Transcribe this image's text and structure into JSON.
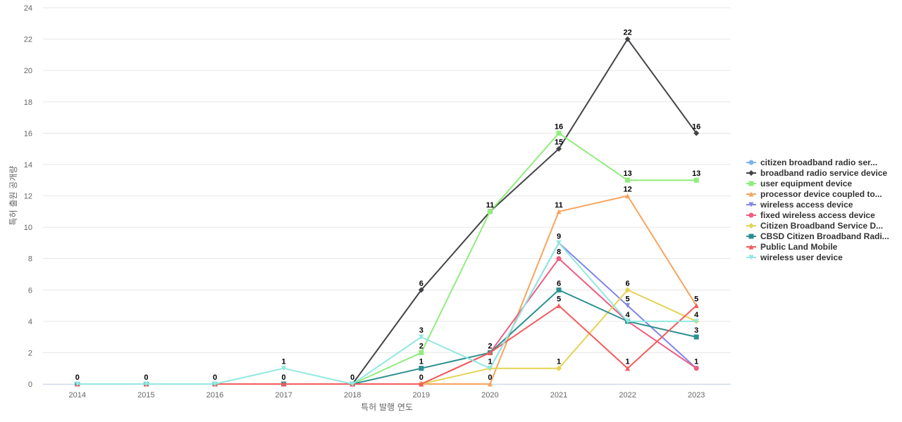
{
  "chart_data": {
    "type": "line",
    "xlabel": "특허 발행 연도",
    "ylabel": "특허 출원 공개량",
    "ylim": [
      0,
      24
    ],
    "y_ticks": [
      0,
      2,
      4,
      6,
      8,
      10,
      12,
      14,
      16,
      18,
      20,
      22,
      24
    ],
    "x": [
      "2014",
      "2015",
      "2016",
      "2017",
      "2018",
      "2019",
      "2020",
      "2021",
      "2022",
      "2023"
    ],
    "grid": true,
    "legend_position": "right",
    "series": [
      {
        "name": "citizen broadband radio ser...",
        "color": "#7cb5ec",
        "marker": "circle",
        "values": [
          0,
          0,
          0,
          0,
          0,
          null,
          null,
          null,
          null,
          null
        ]
      },
      {
        "name": "broadband radio service device",
        "color": "#434348",
        "marker": "diamond",
        "values": [
          null,
          null,
          null,
          null,
          0,
          6,
          11,
          15,
          22,
          16
        ]
      },
      {
        "name": "user equipment device",
        "color": "#90ed7d",
        "marker": "square",
        "values": [
          null,
          null,
          null,
          null,
          0,
          2,
          11,
          16,
          13,
          13
        ]
      },
      {
        "name": "processor device coupled to...",
        "color": "#f7a35c",
        "marker": "triangle",
        "values": [
          null,
          null,
          null,
          null,
          null,
          0,
          0,
          11,
          12,
          5
        ]
      },
      {
        "name": "wireless access device",
        "color": "#8085e9",
        "marker": "triangle-down",
        "values": [
          null,
          null,
          null,
          null,
          null,
          null,
          1,
          9,
          5,
          1
        ]
      },
      {
        "name": "fixed wireless access device",
        "color": "#f15c80",
        "marker": "circle",
        "values": [
          null,
          null,
          null,
          null,
          null,
          0,
          2,
          8,
          4,
          1
        ]
      },
      {
        "name": "Citizen Broadband Service D...",
        "color": "#e4d354",
        "marker": "diamond",
        "values": [
          null,
          null,
          null,
          null,
          null,
          0,
          1,
          1,
          6,
          4
        ]
      },
      {
        "name": "CBSD Citizen Broadband Radi...",
        "color": "#2b908f",
        "marker": "square",
        "values": [
          0,
          0,
          0,
          0,
          0,
          1,
          2,
          6,
          4,
          3
        ]
      },
      {
        "name": "Public Land Mobile",
        "color": "#f45b5b",
        "marker": "triangle",
        "values": [
          0,
          0,
          0,
          0,
          0,
          0,
          2,
          5,
          1,
          5
        ]
      },
      {
        "name": "wireless user device",
        "color": "#91e8e1",
        "marker": "triangle-down",
        "values": [
          0,
          0,
          0,
          1,
          0,
          3,
          1,
          9,
          4,
          4
        ]
      }
    ],
    "data_labels": [
      {
        "x": "2014",
        "value": 0,
        "text": "0"
      },
      {
        "x": "2015",
        "value": 0,
        "text": "0"
      },
      {
        "x": "2016",
        "value": 0,
        "text": "0"
      },
      {
        "x": "2017",
        "value": 1,
        "text": "1"
      },
      {
        "x": "2017",
        "value": 0,
        "text": "0"
      },
      {
        "x": "2018",
        "value": 0,
        "text": "0"
      },
      {
        "x": "2019",
        "value": 6,
        "text": "6"
      },
      {
        "x": "2019",
        "value": 3,
        "text": "3"
      },
      {
        "x": "2019",
        "value": 2,
        "text": "2"
      },
      {
        "x": "2019",
        "value": 1,
        "text": "1"
      },
      {
        "x": "2019",
        "value": 0,
        "text": "0"
      },
      {
        "x": "2020",
        "value": 11,
        "text": "11"
      },
      {
        "x": "2020",
        "value": 2,
        "text": "2"
      },
      {
        "x": "2020",
        "value": 1,
        "text": "1"
      },
      {
        "x": "2020",
        "value": 0,
        "text": "0"
      },
      {
        "x": "2021",
        "value": 16,
        "text": "16"
      },
      {
        "x": "2021",
        "value": 15,
        "text": "15"
      },
      {
        "x": "2021",
        "value": 11,
        "text": "11"
      },
      {
        "x": "2021",
        "value": 9,
        "text": "9"
      },
      {
        "x": "2021",
        "value": 8,
        "text": "8"
      },
      {
        "x": "2021",
        "value": 6,
        "text": "6"
      },
      {
        "x": "2021",
        "value": 5,
        "text": "5"
      },
      {
        "x": "2021",
        "value": 1,
        "text": "1"
      },
      {
        "x": "2022",
        "value": 22,
        "text": "22"
      },
      {
        "x": "2022",
        "value": 13,
        "text": "13"
      },
      {
        "x": "2022",
        "value": 12,
        "text": "12"
      },
      {
        "x": "2022",
        "value": 6,
        "text": "6"
      },
      {
        "x": "2022",
        "value": 5,
        "text": "5"
      },
      {
        "x": "2022",
        "value": 4,
        "text": "4"
      },
      {
        "x": "2022",
        "value": 1,
        "text": "1"
      },
      {
        "x": "2023",
        "value": 16,
        "text": "16"
      },
      {
        "x": "2023",
        "value": 13,
        "text": "13"
      },
      {
        "x": "2023",
        "value": 5,
        "text": "5"
      },
      {
        "x": "2023",
        "value": 4,
        "text": "4"
      },
      {
        "x": "2023",
        "value": 3,
        "text": "3"
      },
      {
        "x": "2023",
        "value": 1,
        "text": "1"
      }
    ]
  }
}
